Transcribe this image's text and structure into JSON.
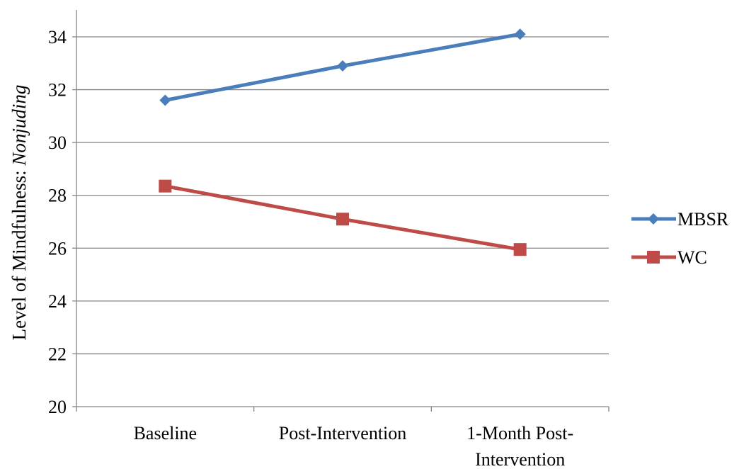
{
  "chart_data": {
    "type": "line",
    "categories": [
      [
        "Baseline"
      ],
      [
        "Post-Intervention"
      ],
      [
        "1-Month Post-",
        "Intervention"
      ]
    ],
    "series": [
      {
        "name": "MBSR",
        "values": [
          31.6,
          32.9,
          34.1
        ],
        "color": "#4a7ebb",
        "marker": "diamond"
      },
      {
        "name": "WC",
        "values": [
          28.35,
          27.1,
          25.95
        ],
        "color": "#be4b48",
        "marker": "square"
      }
    ],
    "ylabel": {
      "main": "Level of Mindfulness: ",
      "italic": "Nonjuding"
    },
    "ylim": [
      20,
      34
    ],
    "yticks": [
      20,
      22,
      24,
      26,
      28,
      30,
      32,
      34
    ],
    "grid": "horizontal",
    "legend_position": "right",
    "gridline_color": "#868686",
    "axis_color": "#868686"
  }
}
